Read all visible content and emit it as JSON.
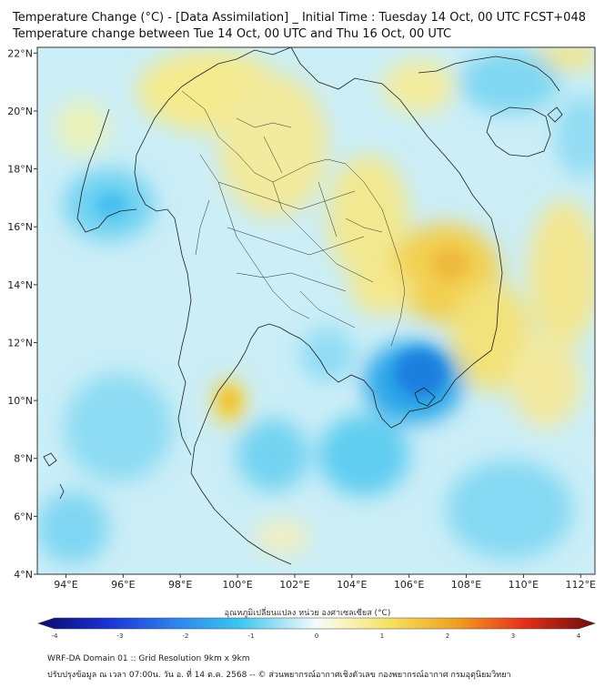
{
  "title": {
    "line1": "Temperature Change (°C) - [Data Assimilation] _ Initial Time : Tuesday 14 Oct, 00 UTC FCST+048",
    "line2": "Temperature change between Tue 14 Oct, 00 UTC and Thu 16 Oct, 00 UTC"
  },
  "map": {
    "lon_range": [
      93,
      112.5
    ],
    "lat_range": [
      4,
      22.2
    ],
    "lon_ticks": [
      "94°E",
      "96°E",
      "98°E",
      "100°E",
      "102°E",
      "104°E",
      "106°E",
      "108°E",
      "110°E",
      "112°E"
    ],
    "lat_ticks": [
      "22°N",
      "20°N",
      "18°N",
      "16°N",
      "14°N",
      "12°N",
      "10°N",
      "8°N",
      "6°N",
      "4°N"
    ],
    "background_color": "#c9ecf6",
    "warm_color": "#f3e88c",
    "cool_color": "#4cc3ef",
    "border_color": "#222222"
  },
  "colorbar": {
    "title": "อุณหภูมิเปลี่ยนแปลง หน่วย องศาเซลเซียส (°C)",
    "min": -4,
    "max": 4,
    "tick_labels": [
      "-4",
      "-3",
      "-2",
      "-1",
      "0",
      "1",
      "2",
      "3",
      "4"
    ]
  },
  "footer": {
    "line1": "WRF-DA Domain 01 :: Grid Resolution 9km x 9km",
    "line2": "ปรับปรุงข้อมูล ณ เวลา 07:00น. วัน อ. ที่ 14 ต.ค. 2568 -- © ส่วนพยากรณ์อากาศเชิงตัวเลข กองพยากรณ์อากาศ กรมอุตุนิยมวิทยา"
  }
}
